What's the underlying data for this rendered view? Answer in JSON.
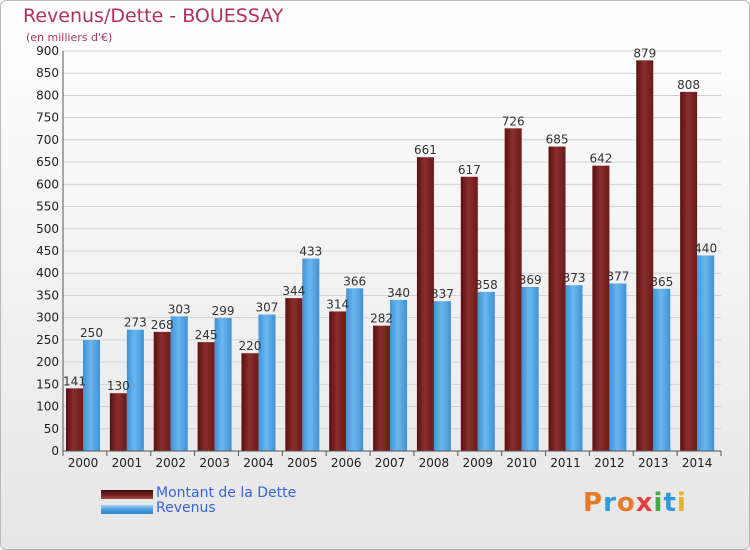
{
  "header": {
    "title": "Revenus/Dette - BOUESSAY",
    "subtitle": "(en milliers d'€)"
  },
  "logo": {
    "text": "Proxiti"
  },
  "chart_data": {
    "type": "bar",
    "title": "Revenus/Dette - BOUESSAY",
    "subtitle": "(en milliers d'€)",
    "categories": [
      "2000",
      "2001",
      "2002",
      "2003",
      "2004",
      "2005",
      "2006",
      "2007",
      "2008",
      "2009",
      "2010",
      "2011",
      "2012",
      "2013",
      "2014"
    ],
    "series": [
      {
        "name": "Montant de la Dette",
        "color": "#7a2424",
        "values": [
          141,
          130,
          268,
          245,
          220,
          344,
          314,
          282,
          661,
          617,
          726,
          685,
          642,
          879,
          808
        ]
      },
      {
        "name": "Revenus",
        "color": "#4aa0e0",
        "values": [
          250,
          273,
          303,
          299,
          307,
          433,
          366,
          340,
          337,
          358,
          369,
          373,
          377,
          365,
          440
        ]
      }
    ],
    "yticks": [
      0,
      50,
      100,
      150,
      200,
      250,
      300,
      350,
      400,
      450,
      500,
      550,
      600,
      650,
      700,
      750,
      800,
      850,
      900
    ],
    "ylim": [
      0,
      900
    ],
    "grid": true,
    "legend_position": "bottom-left"
  }
}
